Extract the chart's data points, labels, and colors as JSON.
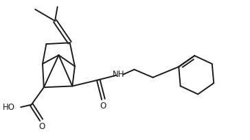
{
  "background_color": "#ffffff",
  "line_color": "#1a1a1a",
  "line_width": 1.4,
  "font_size": 8.5,
  "figsize": [
    3.64,
    2.04
  ],
  "dpi": 100,
  "xlim": [
    0,
    10
  ],
  "ylim": [
    0,
    5.6
  ]
}
